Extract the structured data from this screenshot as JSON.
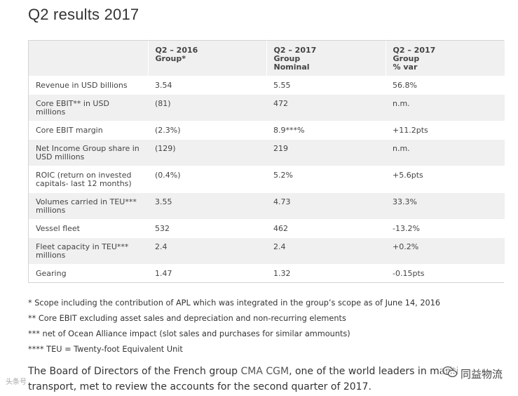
{
  "title": "Q2 results 2017",
  "table": {
    "headers": [
      {
        "line1": "",
        "line2": "",
        "line3": ""
      },
      {
        "line1": "Q2 – 2016",
        "line2": "Group*",
        "line3": ""
      },
      {
        "line1": "Q2 – 2017",
        "line2": "Group",
        "line3": "Nominal"
      },
      {
        "line1": "Q2 – 2017",
        "line2": "Group",
        "line3": "% var"
      }
    ],
    "rows": [
      {
        "label": "Revenue in USD billions",
        "q2_2016": "3.54",
        "q2_2017": "5.55",
        "var": "56.8%"
      },
      {
        "label": "Core EBIT** in USD millions",
        "q2_2016": "(81)",
        "q2_2017": "472",
        "var": "n.m."
      },
      {
        "label": "Core EBIT margin",
        "q2_2016": "(2.3%)",
        "q2_2017": "8.9***%",
        "var": "+11.2pts"
      },
      {
        "label": "Net Income Group share in USD millions",
        "q2_2016": "(129)",
        "q2_2017": "219",
        "var": "n.m."
      },
      {
        "label": "ROIC (return on invested capitals- last 12 months)",
        "q2_2016": "(0.4%)",
        "q2_2017": "5.2%",
        "var": "+5.6pts"
      },
      {
        "label": "Volumes carried in TEU*** millions",
        "q2_2016": "3.55",
        "q2_2017": "4.73",
        "var": "33.3%"
      },
      {
        "label": "Vessel fleet",
        "q2_2016": "532",
        "q2_2017": "462",
        "var": "-13.2%"
      },
      {
        "label": "Fleet capacity in TEU*** millions",
        "q2_2016": "2.4",
        "q2_2017": "2.4",
        "var": "+0.2%"
      },
      {
        "label": "Gearing",
        "q2_2016": "1.47",
        "q2_2017": "1.32",
        "var": "-0.15pts"
      }
    ]
  },
  "footnotes": [
    "* Scope including the contribution of APL which was integrated in the group’s scope as of June 14, 2016",
    "** Core EBIT excluding asset sales and depreciation and non-recurring elements",
    "*** net of Ocean Alliance impact (slot sales and purchases for similar ammounts)",
    "**** TEU = Twenty-foot Equivalent Unit"
  ],
  "paragraph": {
    "before": "The Board of Directors of the French group ",
    "link": "CMA CGM",
    "after": ", one of the world leaders in mariti",
    "line2": "transport, met to review the accounts for the second quarter of 2017."
  },
  "watermark_right": "同益物流",
  "watermark_left": "头条号"
}
